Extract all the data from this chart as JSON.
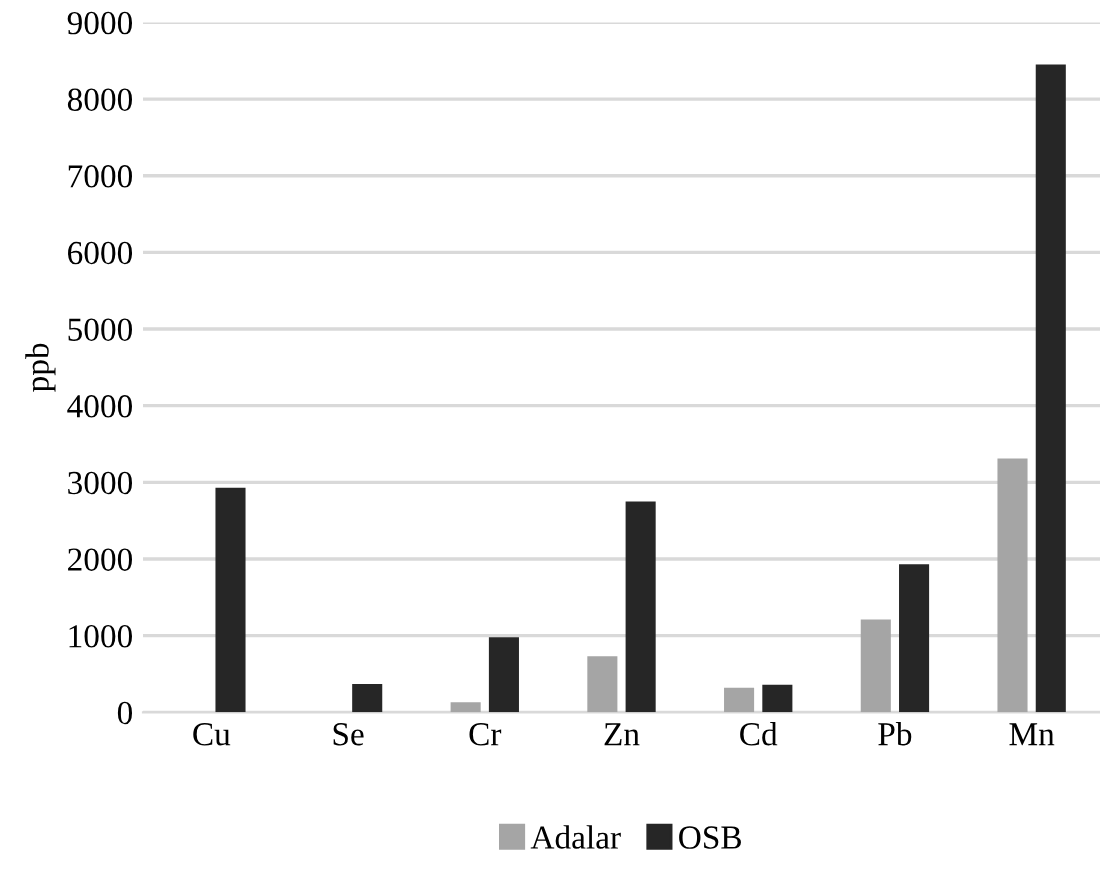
{
  "chart_data": {
    "type": "bar",
    "ylabel": "ppb",
    "categories": [
      "Cu",
      "Se",
      "Cr",
      "Zn",
      "Cd",
      "Pb",
      "Mn"
    ],
    "series": [
      {
        "name": "Adalar",
        "color": "#a5a5a5",
        "values": [
          0,
          0,
          130,
          730,
          320,
          1210,
          3310
        ]
      },
      {
        "name": "OSB",
        "color": "#262626",
        "values": [
          2930,
          370,
          980,
          2750,
          360,
          1930,
          8450
        ]
      }
    ],
    "ylim": [
      0,
      9000
    ],
    "yticks": [
      0,
      1000,
      2000,
      3000,
      4000,
      5000,
      6000,
      7000,
      8000,
      9000
    ],
    "grid": "y",
    "legend": "bottom"
  }
}
